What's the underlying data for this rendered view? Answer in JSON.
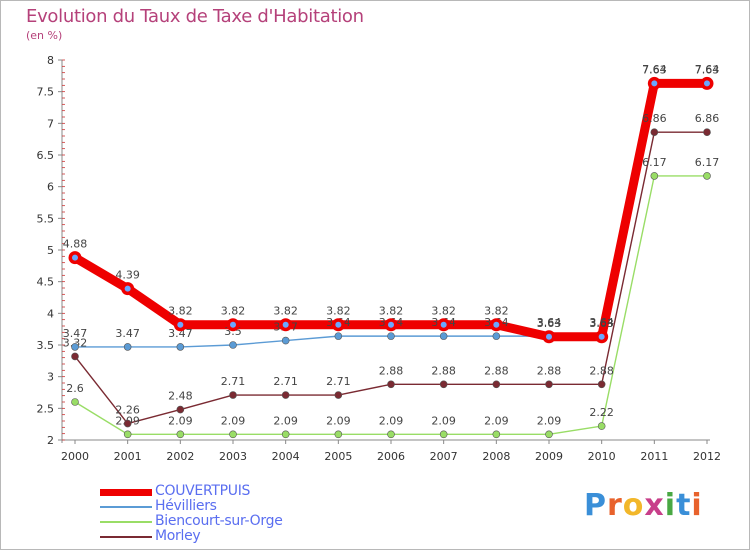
{
  "header": {
    "title": "Evolution du Taux de Taxe d'Habitation",
    "subtitle": "(en %)"
  },
  "logo": {
    "letters": [
      "P",
      "r",
      "o",
      "x",
      "i",
      "t",
      "i"
    ],
    "colors": [
      "#3a8fd8",
      "#e8622c",
      "#f2b72a",
      "#c83f8a",
      "#49a843",
      "#3a8fd8",
      "#e8622c"
    ]
  },
  "chart_data": {
    "type": "line",
    "x": [
      2000,
      2001,
      2002,
      2003,
      2004,
      2005,
      2006,
      2007,
      2008,
      2009,
      2010,
      2011,
      2012
    ],
    "ylim": [
      2,
      8
    ],
    "yticks": [
      2,
      2.5,
      3,
      3.5,
      4,
      4.5,
      5,
      5.5,
      6,
      6.5,
      7,
      7.5,
      8
    ],
    "ytick_labels": [
      "2",
      "2.5",
      "3",
      "3.5",
      "4",
      "4.5",
      "5",
      "5.5",
      "6",
      "6.5",
      "7",
      "7.5",
      "8"
    ],
    "xtick_labels": [
      "2000",
      "2001",
      "2002",
      "2003",
      "2004",
      "2005",
      "2006",
      "2007",
      "2008",
      "2009",
      "2010",
      "2011",
      "2012"
    ],
    "legend_position": "bottom-left",
    "series": [
      {
        "name": "Biencourt-sur-Orge",
        "color": "#99dd66",
        "values": [
          2.6,
          2.09,
          2.09,
          2.09,
          2.09,
          2.09,
          2.09,
          2.09,
          2.09,
          2.09,
          2.22,
          6.17,
          6.17
        ],
        "labels": [
          "2.6",
          "2.09",
          "2.09",
          "2.09",
          "2.09",
          "2.09",
          "2.09",
          "2.09",
          "2.09",
          "2.09",
          "2.22",
          "6.17",
          "6.17"
        ]
      },
      {
        "name": "Morley",
        "color": "#7a2a32",
        "values": [
          3.32,
          2.26,
          2.48,
          2.71,
          2.71,
          2.71,
          2.88,
          2.88,
          2.88,
          2.88,
          2.88,
          6.86,
          6.86
        ],
        "labels": [
          "3.32",
          "2.26",
          "2.48",
          "2.71",
          "2.71",
          "2.71",
          "2.88",
          "2.88",
          "2.88",
          "2.88",
          "2.88",
          "6.86",
          "6.86"
        ]
      },
      {
        "name": "Hévilliers",
        "color": "#5b9bd5",
        "values": [
          3.47,
          3.47,
          3.47,
          3.5,
          3.57,
          3.64,
          3.64,
          3.64,
          3.64,
          3.64,
          3.64,
          7.64,
          7.64
        ],
        "labels": [
          "3.47",
          "3.47",
          "3.47",
          "3.5",
          "3.57",
          "3.64",
          "3.64",
          "3.64",
          "3.64",
          "3.64",
          "3.64",
          "7.64",
          "7.64"
        ]
      },
      {
        "name": "COUVERTPUIS",
        "color": "#ee0000",
        "values": [
          4.88,
          4.39,
          3.82,
          3.82,
          3.82,
          3.82,
          3.82,
          3.82,
          3.82,
          3.63,
          3.63,
          7.63,
          7.63
        ],
        "labels": [
          "4.88",
          "4.39",
          "3.82",
          "3.82",
          "3.82",
          "3.82",
          "3.82",
          "3.82",
          "3.82",
          "3.63",
          "3.63",
          "7.63",
          "7.63"
        ]
      }
    ],
    "legend_order": [
      "COUVERTPUIS",
      "Hévilliers",
      "Biencourt-sur-Orge",
      "Morley"
    ]
  }
}
